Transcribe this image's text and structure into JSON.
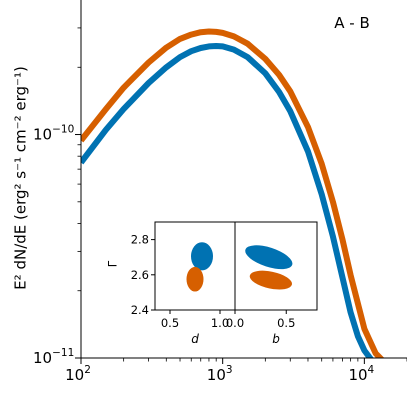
{
  "chart_data": {
    "type": "line",
    "annotation": "A - B",
    "ylabel": "E² dN/dE (erg² s⁻¹ cm⁻² erg⁻¹)",
    "xscale": "log",
    "yscale": "log",
    "xlim": [
      100,
      20000
    ],
    "ylim": [
      1e-11,
      4e-10
    ],
    "xticks": [
      {
        "value": 100,
        "label": "10",
        "exp": "2"
      },
      {
        "value": 1000,
        "label": "10",
        "exp": "3"
      },
      {
        "value": 10000,
        "label": "10",
        "exp": "4"
      }
    ],
    "yticks": [
      {
        "value": 1e-11,
        "label": "10",
        "exp": "−11"
      },
      {
        "value": 1e-10,
        "label": "10",
        "exp": "−10"
      }
    ],
    "series": [
      {
        "color": "#d65f00",
        "x": [
          100,
          150,
          200,
          300,
          400,
          500,
          600,
          700,
          800,
          900,
          1000,
          1200,
          1500,
          2000,
          2500,
          3000,
          4000,
          5000,
          6000,
          7000,
          8000,
          10000,
          12000,
          14000
        ],
        "y": [
          9.4e-11,
          1.3e-10,
          1.62e-10,
          2.1e-10,
          2.45e-10,
          2.68e-10,
          2.8e-10,
          2.87e-10,
          2.89e-10,
          2.88e-10,
          2.85e-10,
          2.75e-10,
          2.55e-10,
          2.18e-10,
          1.85e-10,
          1.56e-10,
          1.08e-10,
          7.4e-11,
          5e-11,
          3.4e-11,
          2.35e-11,
          1.35e-11,
          1.05e-11,
          9.5e-12
        ]
      },
      {
        "color": "#0072b2",
        "x": [
          100,
          150,
          200,
          300,
          400,
          500,
          600,
          700,
          800,
          900,
          1000,
          1200,
          1500,
          2000,
          2500,
          3000,
          4000,
          5000,
          6000,
          7000,
          8000,
          9000,
          10000,
          11500,
          13000
        ],
        "y": [
          7.5e-11,
          1.05e-10,
          1.3e-10,
          1.7e-10,
          2e-10,
          2.22e-10,
          2.36e-10,
          2.44e-10,
          2.48e-10,
          2.49e-10,
          2.48e-10,
          2.4e-10,
          2.22e-10,
          1.88e-10,
          1.55e-10,
          1.27e-10,
          8.4e-11,
          5.4e-11,
          3.5e-11,
          2.3e-11,
          1.6e-11,
          1.25e-11,
          1.08e-11,
          9.6e-12,
          9.2e-12
        ]
      }
    ],
    "inset": {
      "ylabel": "Γ",
      "ylim": [
        2.4,
        2.9
      ],
      "yticks": [
        2.4,
        2.6,
        2.8
      ],
      "ytick_labels": [
        "2.4",
        "2.6",
        "2.8"
      ],
      "panels": [
        {
          "xlabel": "d",
          "xlim": [
            0.35,
            1.15
          ],
          "xticks": [
            0.5,
            1.0
          ],
          "xtick_labels": [
            "0.5",
            "1.0"
          ],
          "ellipses": [
            {
              "color": "#0072b2",
              "cx": 0.82,
              "cy": 2.705,
              "rx": 0.11,
              "ry": 0.08,
              "angle": 0
            },
            {
              "color": "#d65f00",
              "cx": 0.75,
              "cy": 2.575,
              "rx": 0.085,
              "ry": 0.07,
              "angle": 0
            }
          ]
        },
        {
          "xlabel": "b",
          "xlim": [
            0.0,
            0.8
          ],
          "xticks": [
            0.0,
            0.5
          ],
          "xtick_labels": [
            "0.0",
            "0.5"
          ],
          "ellipses": [
            {
              "color": "#0072b2",
              "cx": 0.33,
              "cy": 2.7,
              "rx": 0.24,
              "ry": 0.055,
              "angle": 18
            },
            {
              "color": "#d65f00",
              "cx": 0.35,
              "cy": 2.57,
              "rx": 0.21,
              "ry": 0.048,
              "angle": 12
            }
          ]
        }
      ]
    }
  }
}
